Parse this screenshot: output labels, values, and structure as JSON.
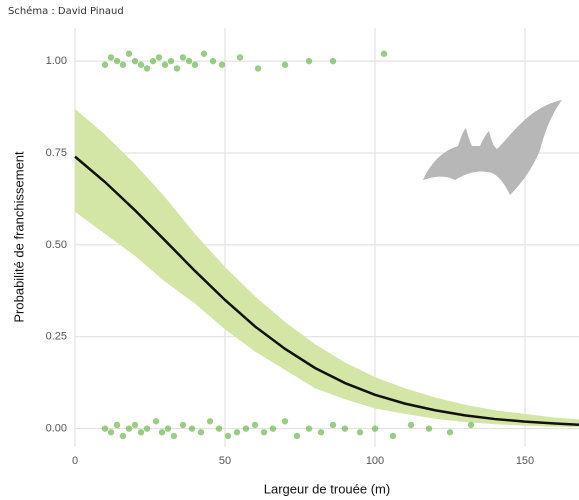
{
  "chart_data": {
    "type": "scatter",
    "credit": "Schéma : David Pinaud",
    "x_label": "Largeur de trouée (m)",
    "y_label": "Probabilité de franchissement",
    "xlim": [
      0,
      168
    ],
    "ylim": [
      -0.05,
      1.09
    ],
    "xticks": [
      0,
      50,
      100,
      150
    ],
    "yticks": [
      {
        "value": 0,
        "label": "0.00"
      },
      {
        "value": 0.25,
        "label": "0.25"
      },
      {
        "value": 0.5,
        "label": "0.50"
      },
      {
        "value": 0.75,
        "label": "0.75"
      },
      {
        "value": 1,
        "label": "1.00"
      }
    ],
    "grid": true,
    "points": {
      "color": "#6cb84f",
      "x": [
        10,
        12,
        14,
        16,
        18,
        20,
        22,
        24,
        26,
        28,
        30,
        32,
        34,
        36,
        38,
        40,
        43,
        46,
        49,
        55,
        61,
        70,
        78,
        86,
        103,
        10,
        12,
        14,
        16,
        18,
        20,
        22,
        24,
        27,
        29,
        31,
        33,
        36,
        39,
        42,
        45,
        48,
        51,
        54,
        57,
        60,
        63,
        66,
        70,
        74,
        78,
        82,
        86,
        90,
        95,
        100,
        106,
        112,
        118,
        125,
        132
      ],
      "y": [
        0.99,
        1.01,
        1.0,
        0.99,
        1.02,
        1.0,
        0.99,
        0.98,
        1.0,
        1.01,
        0.99,
        1.0,
        0.98,
        1.01,
        1.0,
        0.99,
        1.02,
        1.0,
        0.99,
        1.01,
        0.98,
        0.99,
        1.0,
        1.0,
        1.02,
        0.0,
        -0.01,
        0.01,
        -0.02,
        0.0,
        0.01,
        -0.01,
        0.0,
        0.02,
        -0.01,
        0.0,
        -0.02,
        0.01,
        0.0,
        -0.01,
        0.02,
        0.0,
        -0.02,
        -0.01,
        0.0,
        0.01,
        -0.01,
        0.0,
        0.02,
        -0.02,
        0.0,
        -0.01,
        0.01,
        0.0,
        -0.01,
        0.0,
        -0.02,
        0.01,
        0.0,
        -0.01,
        0.01
      ]
    },
    "fit": {
      "color": "#111111",
      "band_color": "#d3e6a6",
      "x": [
        0,
        10,
        20,
        30,
        40,
        50,
        60,
        70,
        80,
        90,
        100,
        110,
        120,
        130,
        140,
        150,
        160,
        168
      ],
      "y": [
        0.74,
        0.671,
        0.594,
        0.512,
        0.429,
        0.35,
        0.278,
        0.217,
        0.165,
        0.124,
        0.092,
        0.068,
        0.05,
        0.036,
        0.026,
        0.019,
        0.014,
        0.0105
      ],
      "upper": [
        0.87,
        0.8,
        0.72,
        0.63,
        0.53,
        0.44,
        0.36,
        0.29,
        0.23,
        0.18,
        0.14,
        0.11,
        0.085,
        0.065,
        0.05,
        0.04,
        0.03,
        0.025
      ],
      "lower": [
        0.59,
        0.53,
        0.47,
        0.4,
        0.34,
        0.27,
        0.21,
        0.16,
        0.11,
        0.08,
        0.055,
        0.04,
        0.027,
        0.018,
        0.012,
        0.008,
        0.005,
        0.004
      ]
    }
  }
}
